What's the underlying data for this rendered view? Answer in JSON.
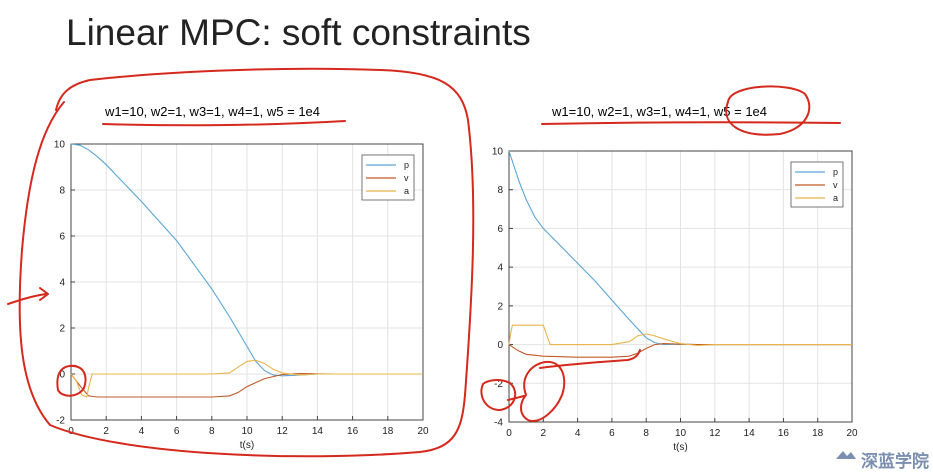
{
  "slide": {
    "title": "Linear MPC: soft constraints"
  },
  "watermark": {
    "text": "深蓝学院"
  },
  "chart_data": [
    {
      "type": "line",
      "title": "w1=10, w2=1, w3=1, w4=1, w5 = 1e4",
      "xlabel": "t(s)",
      "ylabel": "",
      "xlim": [
        0,
        20
      ],
      "ylim": [
        -2,
        10
      ],
      "xticks": [
        0,
        2,
        4,
        6,
        8,
        10,
        12,
        14,
        16,
        18,
        20
      ],
      "yticks": [
        -2,
        0,
        2,
        4,
        6,
        8,
        10
      ],
      "grid": true,
      "legend": "top-right",
      "series": [
        {
          "name": "p",
          "color": "#5aa6d6",
          "x": [
            0,
            0.5,
            1,
            1.5,
            2,
            4,
            6,
            8,
            9,
            10,
            10.5,
            11,
            11.5,
            12,
            13,
            14,
            16,
            20
          ],
          "y": [
            10,
            9.95,
            9.75,
            9.45,
            9.1,
            7.5,
            5.8,
            3.7,
            2.5,
            1.2,
            0.55,
            0.15,
            -0.05,
            -0.08,
            -0.05,
            0,
            0,
            0
          ]
        },
        {
          "name": "v",
          "color": "#c05a28",
          "x": [
            0,
            0.5,
            1,
            1.5,
            2,
            4,
            6,
            8,
            9,
            9.5,
            10,
            11,
            12,
            13,
            14,
            15,
            20
          ],
          "y": [
            0,
            -0.5,
            -0.95,
            -1.0,
            -1.0,
            -1.0,
            -1.0,
            -1.0,
            -0.95,
            -0.8,
            -0.55,
            -0.2,
            -0.02,
            0.02,
            0.01,
            0,
            0
          ]
        },
        {
          "name": "a",
          "color": "#e8b54a",
          "x": [
            0,
            0.3,
            0.6,
            0.9,
            1.0,
            1.2,
            2,
            4,
            6,
            8,
            9,
            9.5,
            10,
            10.5,
            11,
            11.5,
            12,
            13,
            14,
            20
          ],
          "y": [
            0,
            -0.3,
            -0.9,
            -1.0,
            -0.6,
            0,
            0,
            0,
            0,
            0,
            0.05,
            0.3,
            0.55,
            0.6,
            0.45,
            0.2,
            0.05,
            -0.05,
            0,
            0
          ]
        }
      ]
    },
    {
      "type": "line",
      "title": "w1=10, w2=1, w3=1, w4=1, w5 = 1e4",
      "xlabel": "t(s)",
      "ylabel": "",
      "xlim": [
        0,
        20
      ],
      "ylim": [
        -4,
        10
      ],
      "xticks": [
        0,
        2,
        4,
        6,
        8,
        10,
        12,
        14,
        16,
        18,
        20
      ],
      "yticks": [
        -4,
        -2,
        0,
        2,
        4,
        6,
        8,
        10
      ],
      "grid": true,
      "legend": "top-right",
      "series": [
        {
          "name": "p",
          "color": "#5aa6d6",
          "x": [
            0,
            0.3,
            0.6,
            1,
            1.5,
            2,
            2.5,
            3,
            4,
            5,
            6,
            7,
            8,
            8.5,
            9,
            10,
            11,
            12,
            20
          ],
          "y": [
            10,
            9.2,
            8.4,
            7.5,
            6.6,
            6.0,
            5.55,
            5.1,
            4.2,
            3.3,
            2.3,
            1.3,
            0.35,
            0.1,
            0.0,
            0.02,
            0,
            0,
            0
          ]
        },
        {
          "name": "v",
          "color": "#c05a28",
          "x": [
            0,
            0.5,
            1,
            2,
            4,
            6,
            7,
            7.5,
            8,
            8.5,
            9,
            10,
            11,
            20
          ],
          "y": [
            0,
            -0.3,
            -0.5,
            -0.6,
            -0.65,
            -0.65,
            -0.6,
            -0.45,
            -0.2,
            0,
            0.05,
            0.02,
            0,
            0
          ]
        },
        {
          "name": "a",
          "color": "#e8b54a",
          "x": [
            0,
            0.1,
            0.2,
            1,
            2,
            2.2,
            2.4,
            3,
            6,
            7,
            7.5,
            8,
            8.5,
            9,
            10,
            11,
            12,
            20
          ],
          "y": [
            0,
            0.6,
            1.0,
            1.0,
            1.0,
            0.5,
            0,
            0,
            0,
            0.15,
            0.45,
            0.55,
            0.45,
            0.3,
            0.05,
            -0.05,
            0,
            0
          ]
        }
      ]
    }
  ]
}
